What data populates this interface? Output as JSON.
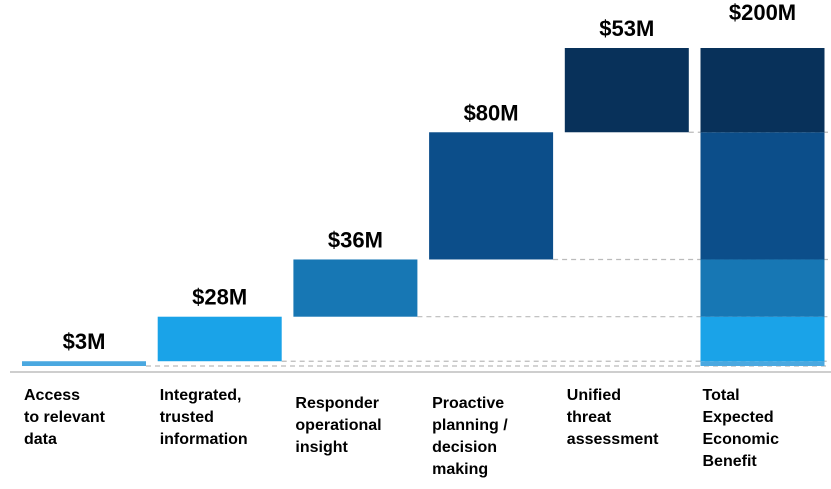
{
  "chart_data": {
    "type": "waterfall",
    "categories": [
      "Access\nto relevant\ndata",
      "Integrated,\ntrusted\ninformation",
      "Responder\noperational\ninsight",
      "Proactive\nplanning /\ndecision\nmaking",
      "Unified\nthreat\nassessment",
      "Total\nExpected\nEconomic\nBenefit"
    ],
    "values": [
      3,
      28,
      36,
      80,
      53,
      200
    ],
    "value_labels": [
      "$3M",
      "$28M",
      "$36M",
      "$80M",
      "$53M",
      "$200M"
    ],
    "colors": [
      "#4aa8e0",
      "#1aa3e8",
      "#1777b4",
      "#0c4e8a",
      "#08315a"
    ]
  }
}
